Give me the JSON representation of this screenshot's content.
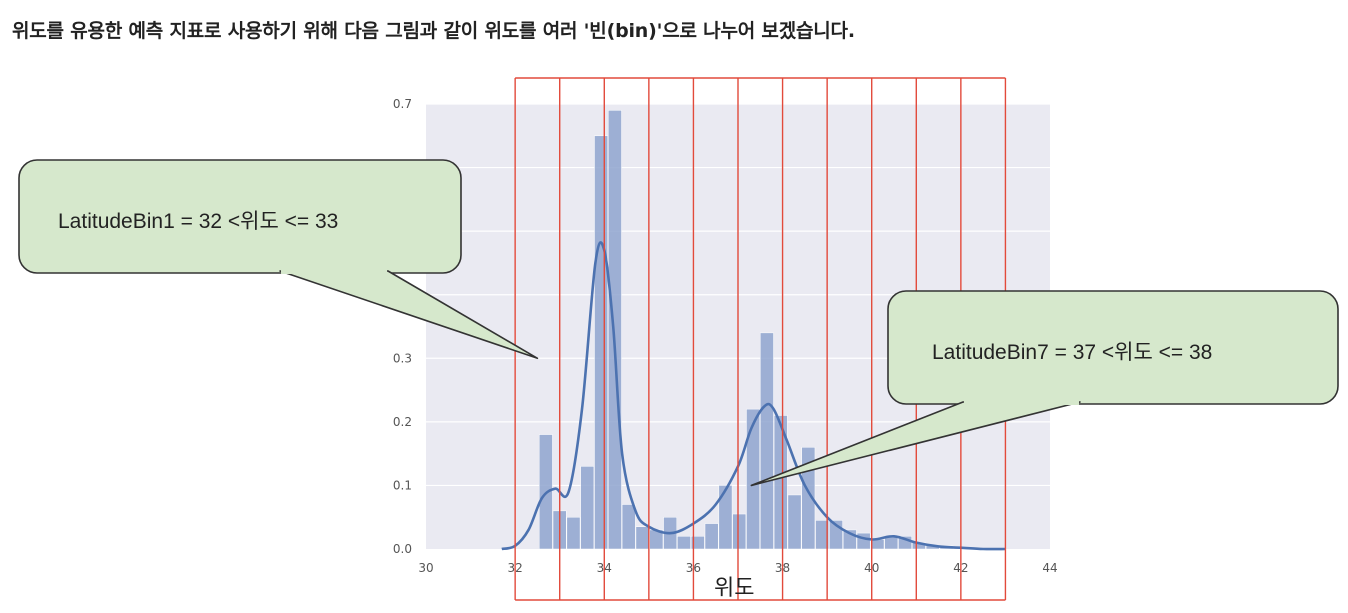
{
  "heading": "위도를 유용한 예측 지표로 사용하기 위해 다음 그림과 같이 위도를 여러 '빈(bin)'으로 나누어 보겠습니다.",
  "colors": {
    "bar": "#8fa5cf",
    "kde": "#4c72b0",
    "plot_bg": "#eaeaf2",
    "bin_line": "#e24a3b",
    "callout_fill": "#d6e8cc",
    "callout_stroke": "#333333"
  },
  "chart_data": {
    "type": "bar",
    "title": "",
    "xlabel": "위도",
    "ylabel": "",
    "xlim": [
      30,
      44
    ],
    "ylim": [
      0,
      0.7
    ],
    "xticks": [
      "30",
      "32",
      "34",
      "36",
      "38",
      "40",
      "42",
      "44"
    ],
    "yticks": [
      "0.0",
      "0.1",
      "0.2",
      "0.3",
      "0.7"
    ],
    "grid": true,
    "histogram": {
      "bin_edges": [
        32.54,
        32.85,
        33.16,
        33.47,
        33.78,
        34.09,
        34.4,
        34.71,
        35.02,
        35.33,
        35.64,
        35.95,
        36.26,
        36.57,
        36.88,
        37.19,
        37.5,
        37.81,
        38.12,
        38.43,
        38.74,
        39.05,
        39.36,
        39.67,
        39.98,
        40.29,
        40.6,
        40.91,
        41.22,
        41.53,
        41.84
      ],
      "density": [
        0.18,
        0.06,
        0.05,
        0.13,
        0.65,
        0.69,
        0.07,
        0.035,
        0.03,
        0.05,
        0.02,
        0.02,
        0.04,
        0.1,
        0.055,
        0.22,
        0.34,
        0.21,
        0.085,
        0.16,
        0.045,
        0.045,
        0.03,
        0.025,
        0.015,
        0.02,
        0.02,
        0.01,
        0.005,
        0.005
      ]
    },
    "kde": {
      "x": [
        31.7,
        32.0,
        32.3,
        32.6,
        32.9,
        33.2,
        33.5,
        33.8,
        34.0,
        34.2,
        34.4,
        34.7,
        35.0,
        35.5,
        36.0,
        36.5,
        37.0,
        37.3,
        37.6,
        37.8,
        38.1,
        38.5,
        39.0,
        39.5,
        40.0,
        40.5,
        41.0,
        41.5,
        42.0,
        42.5,
        43.0
      ],
      "y": [
        0.0,
        0.005,
        0.03,
        0.08,
        0.095,
        0.09,
        0.22,
        0.45,
        0.47,
        0.35,
        0.15,
        0.06,
        0.035,
        0.025,
        0.04,
        0.07,
        0.13,
        0.19,
        0.225,
        0.22,
        0.17,
        0.1,
        0.05,
        0.025,
        0.015,
        0.02,
        0.01,
        0.004,
        0.002,
        0.0,
        0.0
      ]
    },
    "bin_boundaries": [
      32,
      33,
      34,
      35,
      36,
      37,
      38,
      39,
      40,
      41,
      42,
      43
    ],
    "annotations": [
      {
        "text": "LatitudeBin1 = 32 <위도 <= 33",
        "points_to_x": 32.5,
        "points_to_y": 0.3
      },
      {
        "text": "LatitudeBin7 = 37 <위도 <= 38",
        "points_to_x": 37.3,
        "points_to_y": 0.1
      }
    ]
  }
}
